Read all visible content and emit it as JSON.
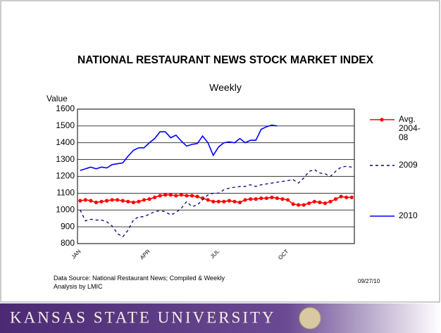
{
  "chart_data": {
    "type": "line",
    "title": "NATIONAL RESTAURANT NEWS STOCK MARKET INDEX",
    "subtitle": "Weekly",
    "y_label": "Value",
    "source": "Data Source: National Restaurant News; Compiled & Weekly Analysis by LMIC",
    "date": "09/27/10",
    "footer": "KANSAS STATE UNIVERSITY",
    "categories": [
      "JAN",
      null,
      null,
      null,
      null,
      null,
      null,
      null,
      null,
      null,
      null,
      null,
      null,
      "APR",
      null,
      null,
      null,
      null,
      null,
      null,
      null,
      null,
      null,
      null,
      null,
      null,
      "JUL",
      null,
      null,
      null,
      null,
      null,
      null,
      null,
      null,
      null,
      null,
      null,
      null,
      "OCT",
      null,
      null,
      null,
      null,
      null,
      null,
      null,
      null,
      null,
      null,
      null,
      null
    ],
    "ylim": [
      800,
      1600
    ],
    "yticks": [
      800,
      900,
      1000,
      1100,
      1200,
      1300,
      1400,
      1500,
      1600
    ],
    "grid": true,
    "series": [
      {
        "name": "Avg. 2004-08",
        "color": "#ff0000",
        "marker": "circle",
        "style": "solid",
        "values": [
          1055,
          1060,
          1055,
          1045,
          1050,
          1055,
          1060,
          1060,
          1055,
          1050,
          1045,
          1050,
          1060,
          1065,
          1075,
          1085,
          1090,
          1090,
          1085,
          1090,
          1085,
          1085,
          1080,
          1070,
          1060,
          1050,
          1050,
          1050,
          1055,
          1050,
          1045,
          1060,
          1065,
          1065,
          1070,
          1070,
          1075,
          1070,
          1065,
          1060,
          1035,
          1030,
          1030,
          1040,
          1050,
          1045,
          1040,
          1050,
          1065,
          1080,
          1075,
          1075
        ]
      },
      {
        "name": "2009",
        "color": "#000080",
        "marker": "none",
        "style": "dashed",
        "values": [
          1000,
          935,
          945,
          940,
          940,
          930,
          905,
          860,
          840,
          880,
          940,
          960,
          960,
          975,
          990,
          995,
          990,
          970,
          985,
          1010,
          1050,
          1020,
          1030,
          1060,
          1090,
          1100,
          1100,
          1120,
          1130,
          1135,
          1140,
          1140,
          1150,
          1140,
          1150,
          1155,
          1160,
          1165,
          1170,
          1175,
          1180,
          1160,
          1190,
          1230,
          1240,
          1220,
          1215,
          1200,
          1230,
          1255,
          1260,
          1255
        ]
      },
      {
        "name": "2010",
        "color": "#0000ff",
        "marker": "none",
        "style": "solid",
        "values": [
          1235,
          1245,
          1255,
          1245,
          1255,
          1250,
          1270,
          1275,
          1280,
          1320,
          1355,
          1370,
          1370,
          1400,
          1425,
          1465,
          1465,
          1430,
          1445,
          1410,
          1380,
          1390,
          1395,
          1440,
          1400,
          1325,
          1375,
          1400,
          1405,
          1400,
          1425,
          1400,
          1415,
          1415,
          1480,
          1495,
          1505,
          1500,
          null,
          null,
          null,
          null,
          null,
          null,
          null,
          null,
          null,
          null,
          null,
          null,
          null,
          null
        ]
      }
    ]
  }
}
